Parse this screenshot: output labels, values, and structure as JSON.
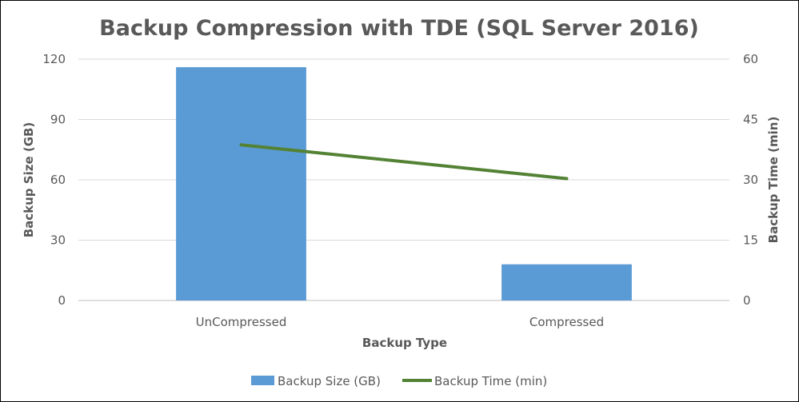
{
  "chart_data": {
    "type": "bar",
    "title": "Backup Compression with TDE (SQL Server 2016)",
    "xlabel": "Backup Type",
    "ylabel": "Backup Size (GB)",
    "y2label": "Backup Time (min)",
    "categories": [
      "UnCompressed",
      "Compressed"
    ],
    "ylim": [
      0,
      120
    ],
    "y2lim": [
      0,
      60
    ],
    "yticks": [
      "0",
      "30",
      "60",
      "90",
      "120"
    ],
    "y2ticks": [
      "0",
      "15",
      "30",
      "45",
      "60"
    ],
    "grid": true,
    "legend": "bottom",
    "series": [
      {
        "name": "Backup Size (GB)",
        "type": "bar",
        "axis": "left",
        "color": "#5b9bd5",
        "values": [
          116,
          18
        ]
      },
      {
        "name": "Backup Time (min)",
        "type": "line",
        "axis": "right",
        "color": "#548235",
        "values": [
          38.7,
          30.3
        ]
      }
    ]
  }
}
